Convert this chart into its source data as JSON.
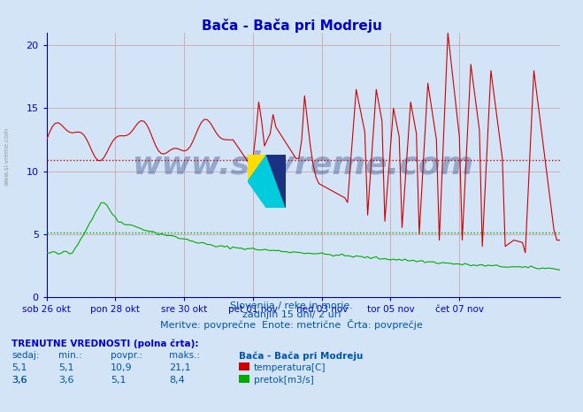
{
  "title": "Bača - Bača pri Modreju",
  "background_color": "#d4e4f7",
  "plot_bg_color": "#d4e4f7",
  "temp_color": "#cc0000",
  "flow_color": "#00aa00",
  "avg_temp_value": 10.9,
  "avg_flow_value": 5.1,
  "ylim": [
    0,
    21
  ],
  "yticks": [
    0,
    5,
    10,
    15,
    20
  ],
  "subtitle1": "Slovenija / reke in morje.",
  "subtitle2": "zadnjih 15 dni/ 2 uri",
  "subtitle3": "Meritve: povprečne  Enote: metrične  Črta: povprečje",
  "footer_title": "TRENUTNE VREDNOSTI (polna črta):",
  "col_headers": [
    "sedaj:",
    "min.:",
    "povpr.:",
    "maks.:"
  ],
  "row1_values": [
    "5,1",
    "5,1",
    "10,9",
    "21,1"
  ],
  "row2_values": [
    "3,6",
    "3,6",
    "5,1",
    "8,4"
  ],
  "legend_title": "Bača - Bača pri Modreju",
  "legend_items": [
    "temperatura[C]",
    "pretok[m3/s]"
  ],
  "watermark": "www.si-vreme.com",
  "x_tick_labels": [
    "sob 26 okt",
    "pon 28 okt",
    "sre 30 okt",
    "pet 01 nov",
    "ned 03 nov",
    "tor 05 nov",
    "čet 07 nov"
  ],
  "x_tick_positions": [
    0,
    24,
    48,
    72,
    96,
    120,
    144
  ],
  "n_points": 180
}
